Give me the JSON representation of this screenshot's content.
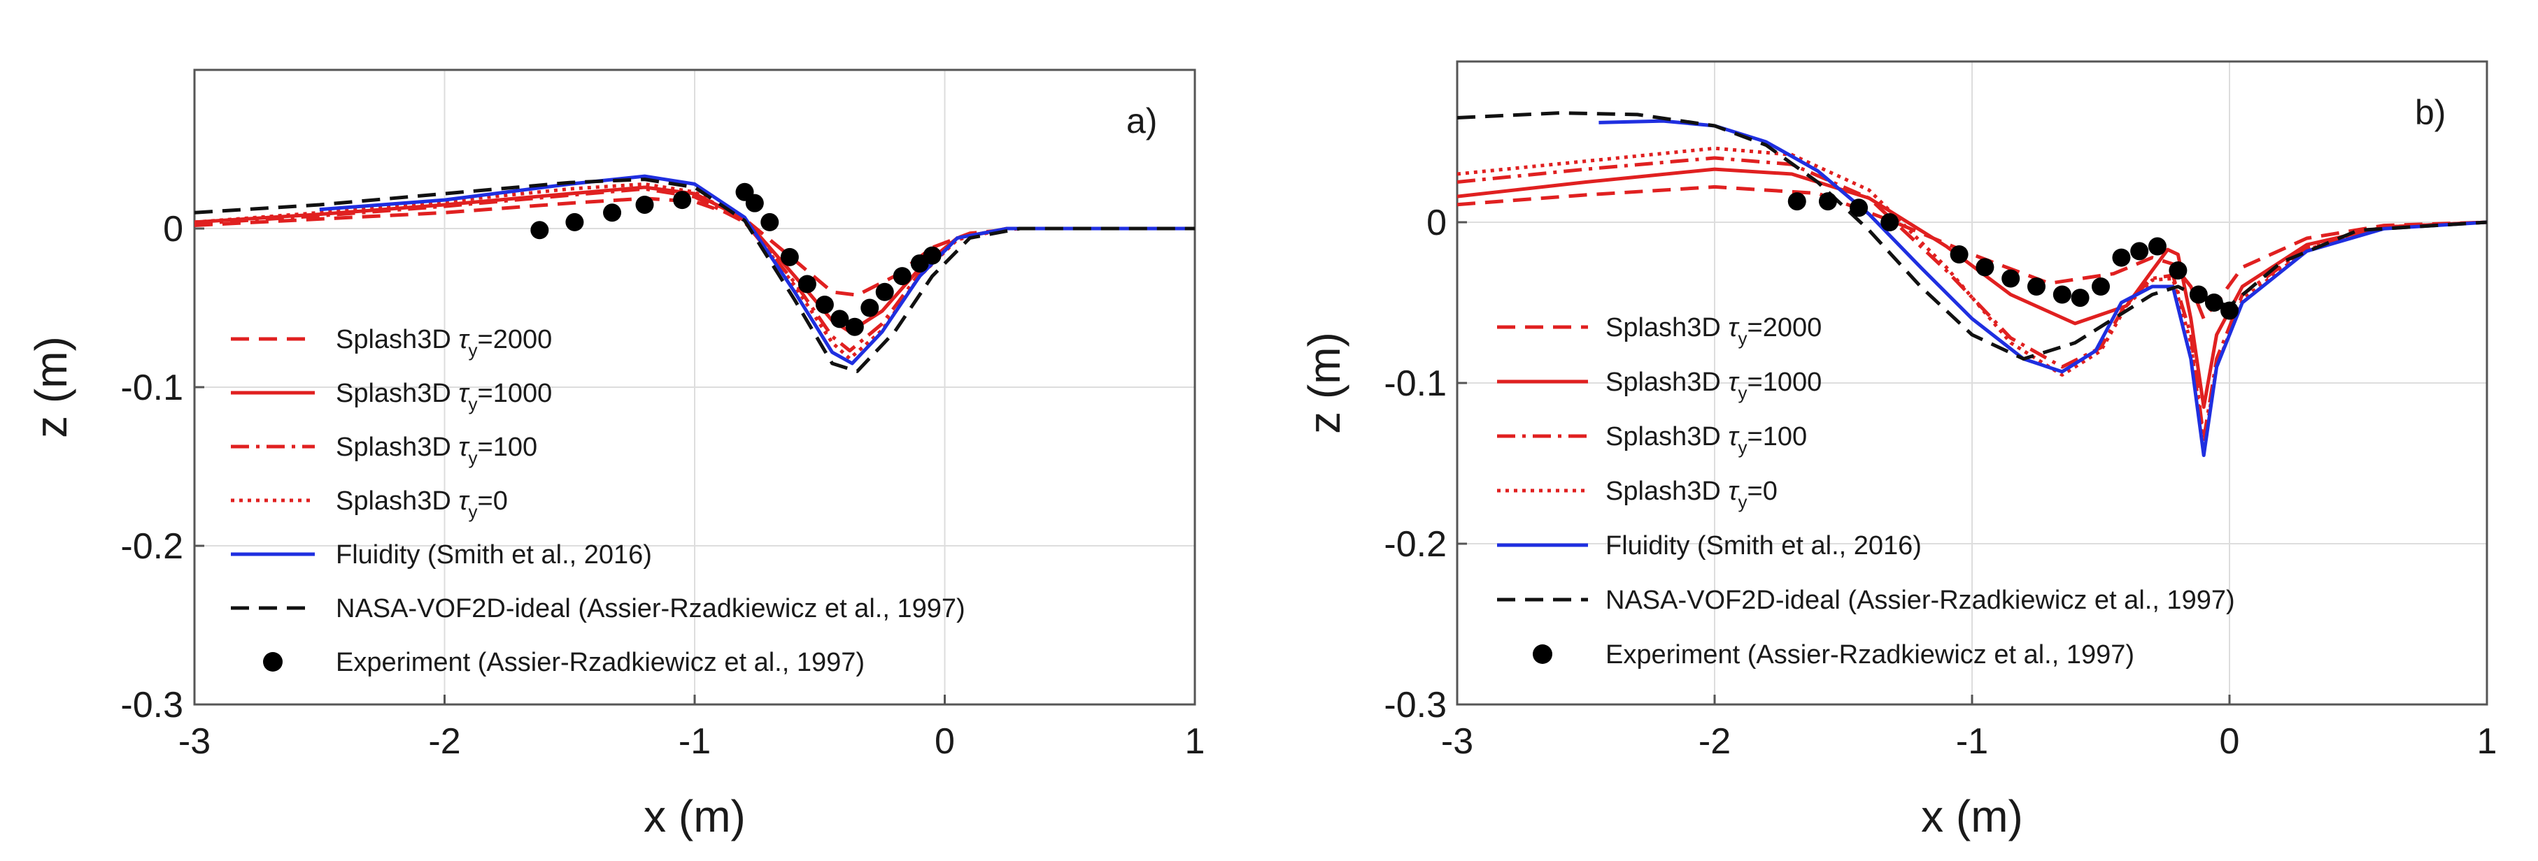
{
  "chart_data": [
    {
      "type": "line",
      "panel_label": "a)",
      "xlabel": "x (m)",
      "ylabel": "z (m)",
      "xlim": [
        -3,
        1
      ],
      "ylim": [
        -0.3,
        0.1
      ],
      "xticks": [
        -3,
        -2,
        -1,
        0,
        1
      ],
      "yticks": [
        -0.3,
        -0.2,
        -0.1,
        0
      ],
      "ytick_labels": [
        "-0.3",
        "-0.2",
        "-0.1",
        "0"
      ],
      "grid": true,
      "legend_position": "bottom-left",
      "series": [
        {
          "name": "Splash3D",
          "tau": "2000",
          "style": "dashed",
          "color": "#e02020",
          "x": [
            -3,
            -2.5,
            -2,
            -1.5,
            -1.2,
            -1.0,
            -0.8,
            -0.6,
            -0.45,
            -0.35,
            -0.2,
            -0.05,
            0.1,
            0.3,
            1
          ],
          "y": [
            0.002,
            0.006,
            0.01,
            0.016,
            0.019,
            0.017,
            0.006,
            -0.02,
            -0.04,
            -0.042,
            -0.03,
            -0.012,
            -0.003,
            0,
            0
          ]
        },
        {
          "name": "Splash3D",
          "tau": "1000",
          "style": "solid",
          "color": "#e02020",
          "x": [
            -3,
            -2.5,
            -2,
            -1.5,
            -1.2,
            -1.0,
            -0.8,
            -0.6,
            -0.45,
            -0.38,
            -0.25,
            -0.1,
            0.05,
            0.25,
            1
          ],
          "y": [
            0.004,
            0.009,
            0.015,
            0.022,
            0.026,
            0.022,
            0.006,
            -0.03,
            -0.058,
            -0.065,
            -0.052,
            -0.025,
            -0.006,
            0,
            0
          ]
        },
        {
          "name": "Splash3D",
          "tau": "100",
          "style": "dashdot",
          "color": "#e02020",
          "x": [
            -3,
            -2.5,
            -2,
            -1.5,
            -1.2,
            -1.0,
            -0.8,
            -0.6,
            -0.45,
            -0.38,
            -0.25,
            -0.1,
            0.05,
            0.25,
            1
          ],
          "y": [
            0.003,
            0.008,
            0.014,
            0.021,
            0.025,
            0.02,
            0.004,
            -0.034,
            -0.068,
            -0.077,
            -0.06,
            -0.028,
            -0.006,
            0,
            0
          ]
        },
        {
          "name": "Splash3D",
          "tau": "0",
          "style": "dotted",
          "color": "#e02020",
          "x": [
            -3,
            -2.5,
            -2,
            -1.5,
            -1.2,
            -1.0,
            -0.8,
            -0.6,
            -0.45,
            -0.38,
            -0.25,
            -0.1,
            0.05,
            0.25,
            1
          ],
          "y": [
            0.004,
            0.01,
            0.017,
            0.025,
            0.028,
            0.023,
            0.005,
            -0.036,
            -0.072,
            -0.082,
            -0.064,
            -0.03,
            -0.007,
            0,
            0
          ]
        },
        {
          "name": "Fluidity (Smith et al., 2016)",
          "style": "solid",
          "color": "#1f2fe0",
          "x": [
            -2.5,
            -2,
            -1.5,
            -1.2,
            -1.0,
            -0.8,
            -0.6,
            -0.45,
            -0.37,
            -0.25,
            -0.1,
            0.05,
            0.25,
            1
          ],
          "y": [
            0.012,
            0.018,
            0.028,
            0.033,
            0.028,
            0.007,
            -0.04,
            -0.078,
            -0.085,
            -0.065,
            -0.03,
            -0.006,
            0,
            0
          ]
        },
        {
          "name": "NASA-VOF2D-ideal (Assier-Rzadkiewicz et al., 1997)",
          "style": "dashed",
          "color": "#111111",
          "x": [
            -3,
            -2.5,
            -2,
            -1.5,
            -1.2,
            -1.0,
            -0.8,
            -0.6,
            -0.45,
            -0.35,
            -0.2,
            -0.05,
            0.1,
            0.3,
            1
          ],
          "y": [
            0.01,
            0.015,
            0.022,
            0.029,
            0.031,
            0.026,
            0.005,
            -0.045,
            -0.085,
            -0.09,
            -0.065,
            -0.03,
            -0.006,
            0,
            0
          ]
        },
        {
          "name": "Experiment (Assier-Rzadkiewicz et al., 1997)",
          "style": "markers",
          "color": "#000000",
          "x": [
            -1.62,
            -1.48,
            -1.33,
            -1.2,
            -1.05,
            -0.8,
            -0.76,
            -0.7,
            -0.62,
            -0.55,
            -0.48,
            -0.42,
            -0.36,
            -0.3,
            -0.24,
            -0.17,
            -0.1,
            -0.05
          ],
          "y": [
            -0.001,
            0.004,
            0.01,
            0.015,
            0.018,
            0.023,
            0.016,
            0.004,
            -0.018,
            -0.035,
            -0.048,
            -0.057,
            -0.062,
            -0.05,
            -0.04,
            -0.03,
            -0.022,
            -0.017
          ]
        }
      ]
    },
    {
      "type": "line",
      "panel_label": "b)",
      "xlabel": "x (m)",
      "ylabel": "z (m)",
      "xlim": [
        -3,
        1
      ],
      "ylim": [
        -0.3,
        0.1
      ],
      "xticks": [
        -3,
        -2,
        -1,
        0,
        1
      ],
      "yticks": [
        -0.3,
        -0.2,
        -0.1,
        0
      ],
      "ytick_labels": [
        "-0.3",
        "-0.2",
        "-0.1",
        "0"
      ],
      "grid": true,
      "legend_position": "bottom-left",
      "series": [
        {
          "name": "Splash3D",
          "tau": "2000",
          "style": "dashed",
          "color": "#e02020",
          "x": [
            -3,
            -2.5,
            -2,
            -1.6,
            -1.3,
            -1.0,
            -0.7,
            -0.45,
            -0.3,
            -0.22,
            -0.15,
            -0.1,
            -0.05,
            0.05,
            0.3,
            0.6,
            1
          ],
          "y": [
            0.011,
            0.017,
            0.022,
            0.018,
            0.0,
            -0.02,
            -0.038,
            -0.032,
            -0.022,
            -0.026,
            -0.04,
            -0.06,
            -0.05,
            -0.028,
            -0.01,
            -0.002,
            0
          ]
        },
        {
          "name": "Splash3D",
          "tau": "1000",
          "style": "solid",
          "color": "#e02020",
          "x": [
            -3,
            -2.5,
            -2,
            -1.7,
            -1.4,
            -1.1,
            -0.85,
            -0.6,
            -0.4,
            -0.3,
            -0.24,
            -0.2,
            -0.15,
            -0.1,
            -0.05,
            0.05,
            0.3,
            0.6,
            1
          ],
          "y": [
            0.016,
            0.025,
            0.033,
            0.03,
            0.015,
            -0.015,
            -0.045,
            -0.063,
            -0.052,
            -0.03,
            -0.017,
            -0.02,
            -0.06,
            -0.115,
            -0.07,
            -0.04,
            -0.014,
            -0.003,
            0
          ]
        },
        {
          "name": "Splash3D",
          "tau": "100",
          "style": "dashdot",
          "color": "#e02020",
          "x": [
            -3,
            -2.5,
            -2,
            -1.7,
            -1.4,
            -1.1,
            -0.85,
            -0.65,
            -0.5,
            -0.4,
            -0.3,
            -0.22,
            -0.15,
            -0.1,
            -0.05,
            0.05,
            0.3,
            0.6,
            1
          ],
          "y": [
            0.025,
            0.033,
            0.04,
            0.036,
            0.015,
            -0.03,
            -0.072,
            -0.09,
            -0.078,
            -0.05,
            -0.035,
            -0.033,
            -0.07,
            -0.135,
            -0.085,
            -0.045,
            -0.016,
            -0.003,
            0
          ]
        },
        {
          "name": "Splash3D",
          "tau": "0",
          "style": "dotted",
          "color": "#e02020",
          "x": [
            -3,
            -2.5,
            -2,
            -1.7,
            -1.4,
            -1.1,
            -0.85,
            -0.65,
            -0.5,
            -0.4,
            -0.3,
            -0.22,
            -0.15,
            -0.1,
            -0.05,
            0.05,
            0.3,
            0.6,
            1
          ],
          "y": [
            0.03,
            0.038,
            0.046,
            0.042,
            0.02,
            -0.028,
            -0.075,
            -0.095,
            -0.08,
            -0.052,
            -0.036,
            -0.035,
            -0.075,
            -0.14,
            -0.09,
            -0.048,
            -0.017,
            -0.003,
            0
          ]
        },
        {
          "name": "Fluidity (Smith et al., 2016)",
          "style": "solid",
          "color": "#1f2fe0",
          "x": [
            -2.45,
            -2.2,
            -2.0,
            -1.8,
            -1.6,
            -1.4,
            -1.2,
            -1.0,
            -0.8,
            -0.65,
            -0.52,
            -0.42,
            -0.3,
            -0.22,
            -0.15,
            -0.1,
            -0.05,
            0.05,
            0.3,
            0.6,
            1
          ],
          "y": [
            0.062,
            0.063,
            0.06,
            0.05,
            0.032,
            0.005,
            -0.028,
            -0.06,
            -0.085,
            -0.093,
            -0.08,
            -0.05,
            -0.04,
            -0.04,
            -0.085,
            -0.145,
            -0.09,
            -0.05,
            -0.018,
            -0.004,
            0
          ]
        },
        {
          "name": "NASA-VOF2D-ideal (Assier-Rzadkiewicz et al., 1997)",
          "style": "dashed",
          "color": "#111111",
          "x": [
            -3,
            -2.6,
            -2.3,
            -2.0,
            -1.8,
            -1.6,
            -1.4,
            -1.2,
            -1.0,
            -0.8,
            -0.6,
            -0.45,
            -0.3,
            -0.2,
            -0.1,
            0.0,
            0.2,
            0.5,
            1
          ],
          "y": [
            0.065,
            0.068,
            0.067,
            0.06,
            0.048,
            0.025,
            -0.005,
            -0.04,
            -0.07,
            -0.085,
            -0.075,
            -0.06,
            -0.045,
            -0.04,
            -0.048,
            -0.052,
            -0.025,
            -0.005,
            0
          ]
        },
        {
          "name": "Experiment (Assier-Rzadkiewicz et al., 1997)",
          "style": "markers",
          "color": "#000000",
          "x": [
            -1.68,
            -1.56,
            -1.44,
            -1.32,
            -1.05,
            -0.95,
            -0.85,
            -0.75,
            -0.65,
            -0.58,
            -0.5,
            -0.42,
            -0.35,
            -0.28,
            -0.2,
            -0.12,
            -0.06,
            0.0
          ],
          "y": [
            0.013,
            0.013,
            0.009,
            0.0,
            -0.02,
            -0.028,
            -0.035,
            -0.04,
            -0.045,
            -0.047,
            -0.04,
            -0.022,
            -0.018,
            -0.015,
            -0.03,
            -0.045,
            -0.05,
            -0.055
          ]
        }
      ]
    }
  ]
}
